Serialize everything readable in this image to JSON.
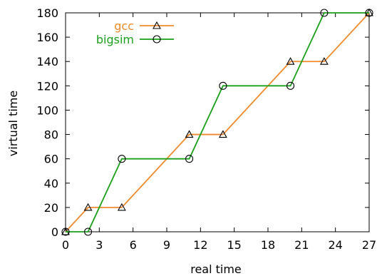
{
  "chart_data": {
    "type": "line",
    "title": "",
    "xlabel": "real time",
    "ylabel": "virtual time",
    "xlim": [
      0,
      27
    ],
    "ylim": [
      0,
      180
    ],
    "xticks": [
      0,
      3,
      6,
      9,
      12,
      15,
      18,
      21,
      24,
      27
    ],
    "yticks": [
      0,
      20,
      40,
      60,
      80,
      100,
      120,
      140,
      160,
      180
    ],
    "grid": false,
    "legend_position": "top-left",
    "series": [
      {
        "name": "gcc",
        "color": "#f08a2c",
        "marker": "triangle",
        "x": [
          0,
          2,
          5,
          11,
          14,
          20,
          23,
          27
        ],
        "y": [
          0,
          20,
          20,
          80,
          80,
          140,
          140,
          180
        ]
      },
      {
        "name": "bigsim",
        "color": "#1aa01a",
        "marker": "circle",
        "x": [
          0,
          2,
          5,
          11,
          14,
          20,
          23,
          27
        ],
        "y": [
          0,
          0,
          60,
          60,
          120,
          120,
          180,
          180
        ]
      }
    ]
  }
}
